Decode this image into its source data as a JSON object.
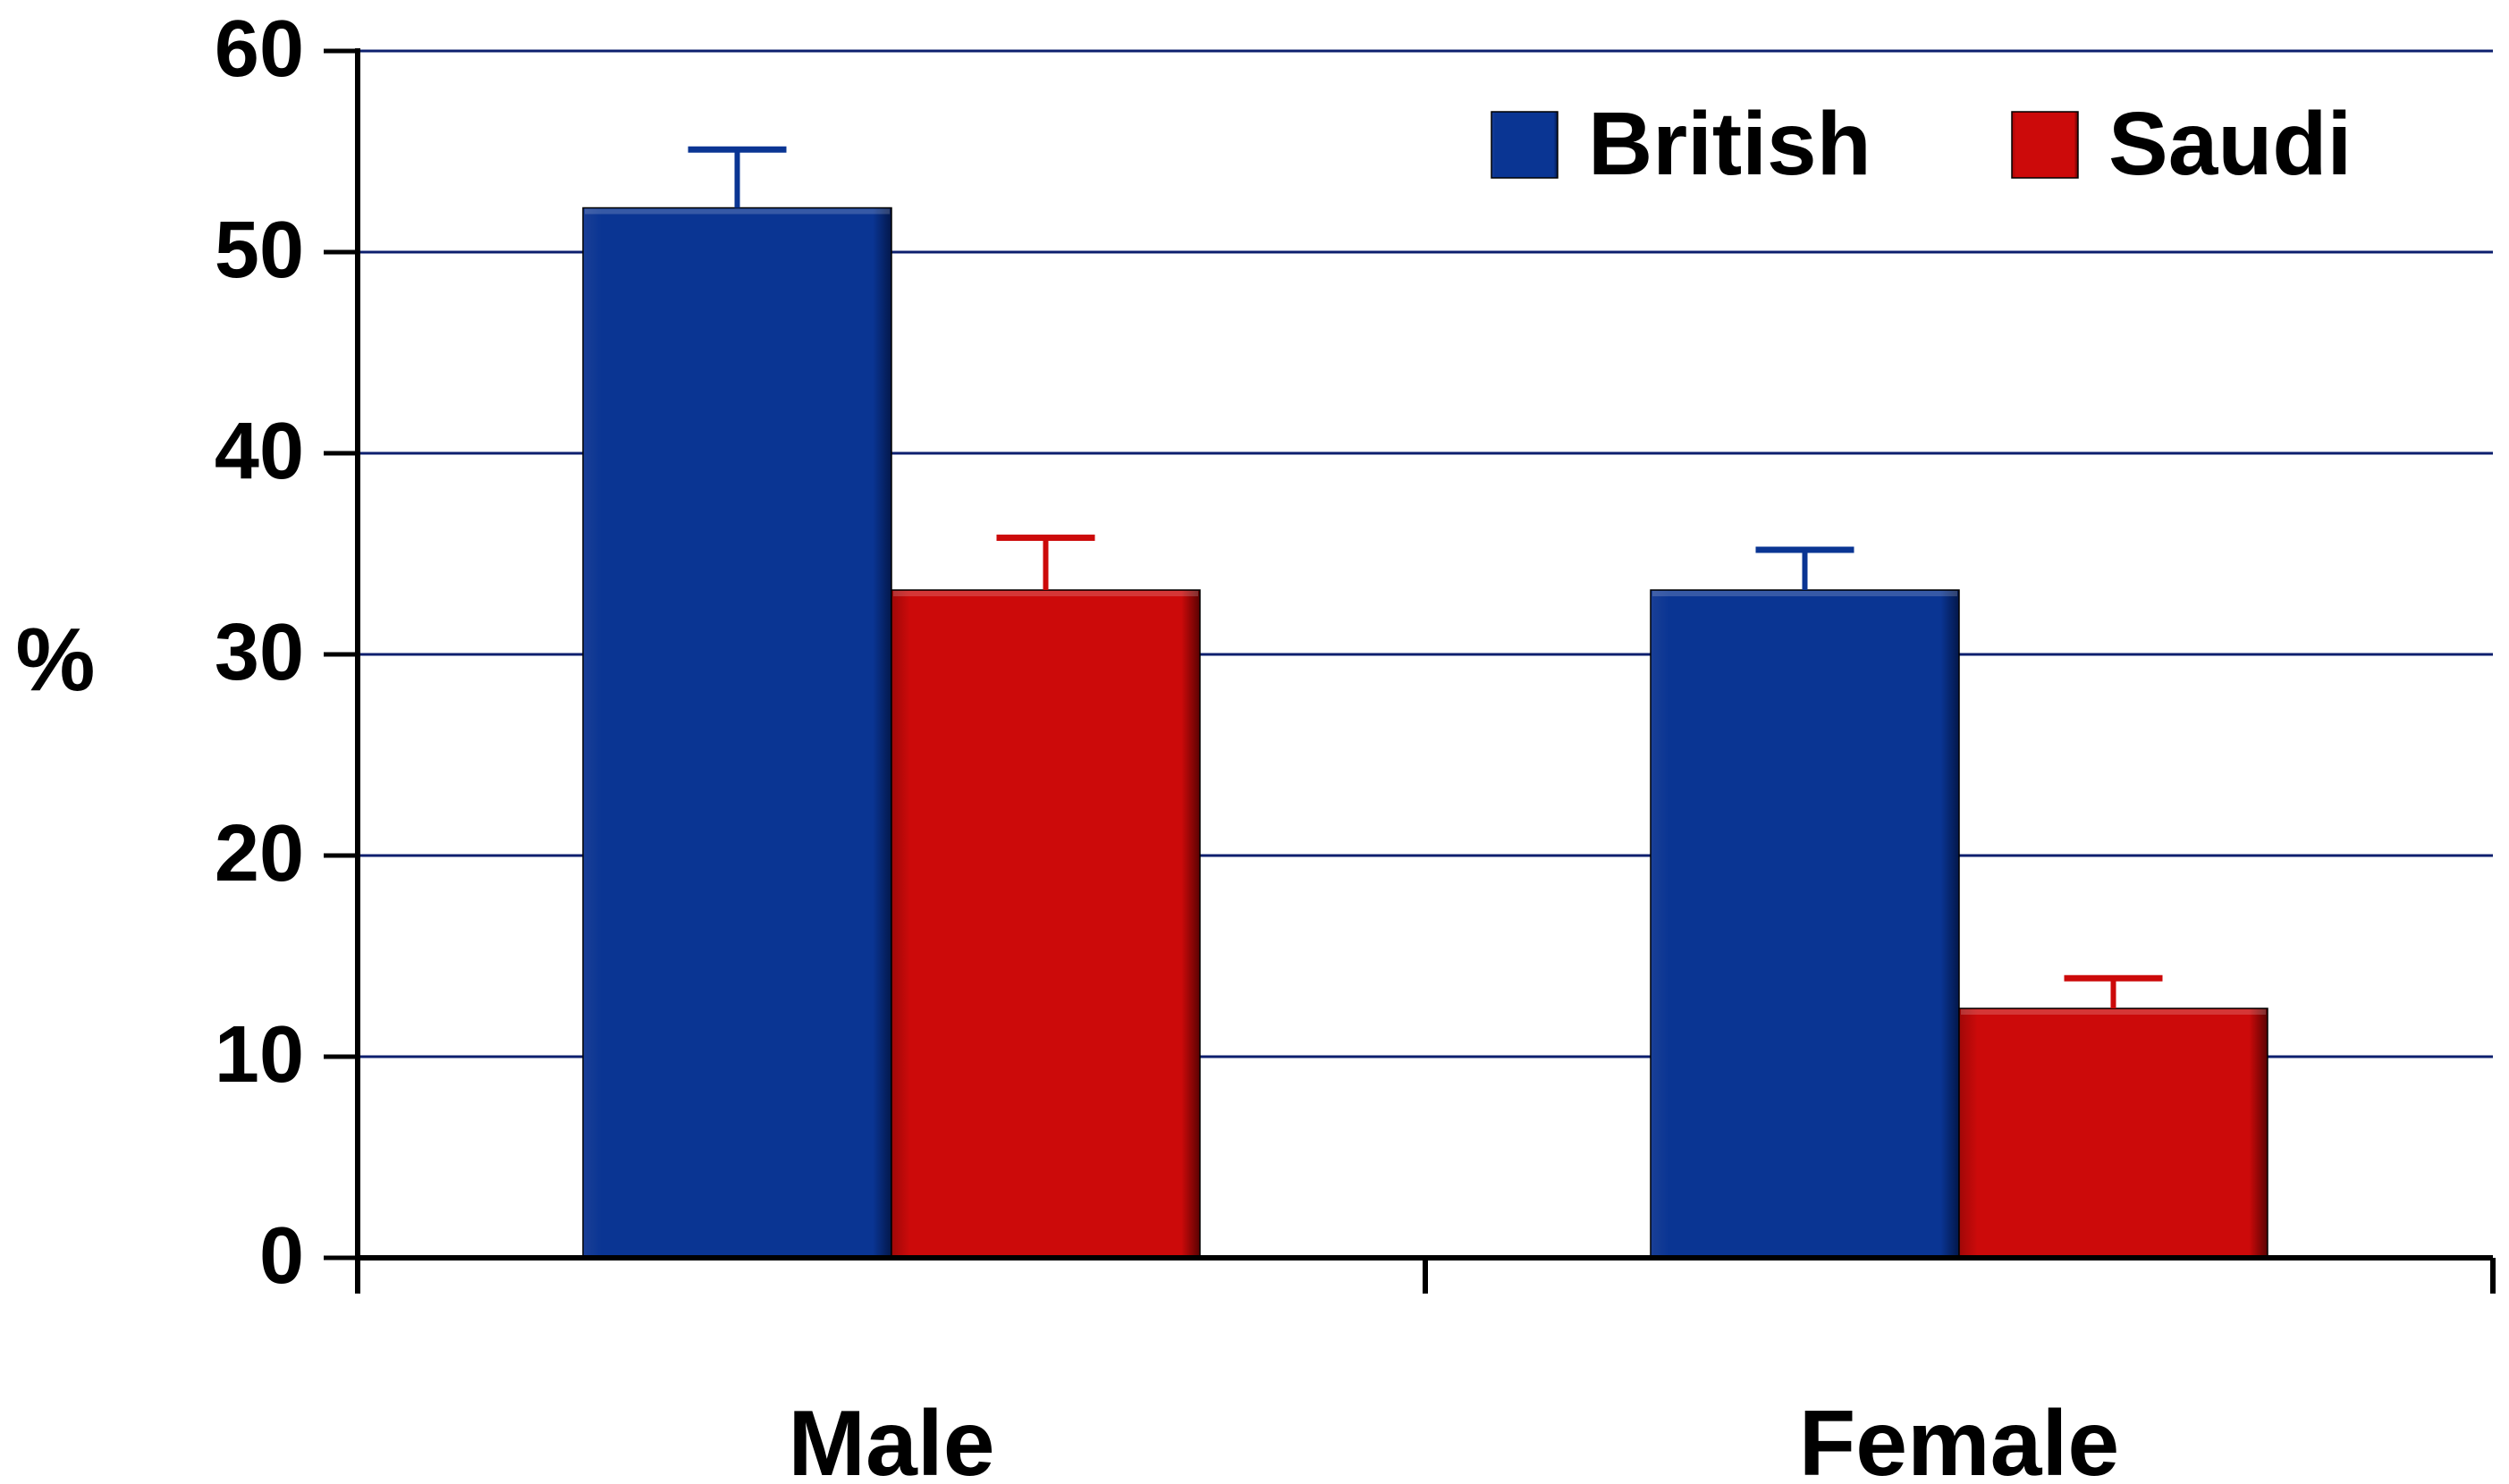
{
  "chart_data": {
    "type": "bar",
    "title": "",
    "xlabel": "",
    "ylabel": "%",
    "ylim": [
      0,
      60
    ],
    "yticks": [
      0,
      10,
      20,
      30,
      40,
      50,
      60
    ],
    "grid": true,
    "legend_position": "top-right",
    "categories": [
      "Male",
      "Female"
    ],
    "series": [
      {
        "name": "British",
        "color": "#0a3593",
        "values": [
          52.2,
          33.2
        ],
        "error_upper": [
          55.1,
          35.2
        ]
      },
      {
        "name": "Saudi",
        "color": "#cc0a0a",
        "values": [
          33.2,
          12.4
        ],
        "error_upper": [
          35.8,
          13.9
        ]
      }
    ]
  }
}
